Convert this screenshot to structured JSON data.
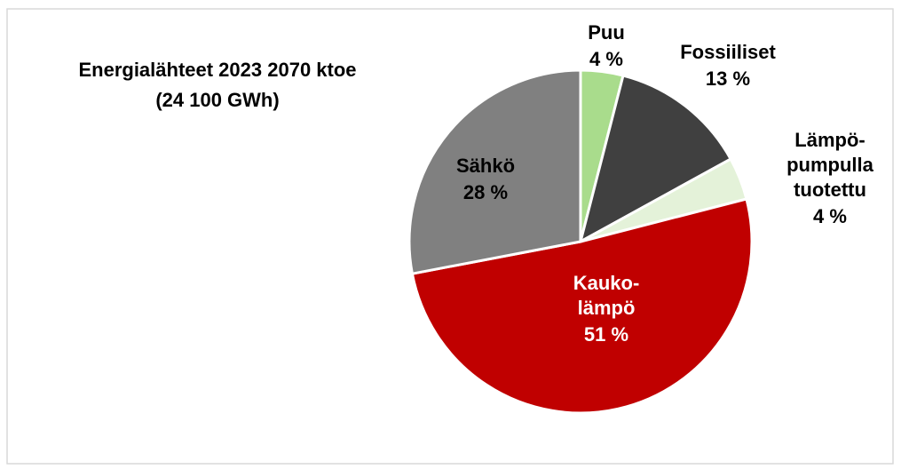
{
  "chart_data": {
    "type": "pie",
    "title": "Energialähteet 2023 2070 ktoe\n(24 100 GWh)",
    "categories": [
      "Puu",
      "Fossiiliset",
      "Lämpö-\npumpulla\ntuotettu",
      "Kauko-\nlämpö",
      "Sähkö"
    ],
    "values": [
      4,
      13,
      4,
      51,
      28
    ],
    "value_labels": [
      "4 %",
      "13 %",
      "4 %",
      "51 %",
      "28 %"
    ],
    "colors": [
      "#a9dc8c",
      "#404040",
      "#e4f2d9",
      "#c00000",
      "#808080"
    ]
  }
}
